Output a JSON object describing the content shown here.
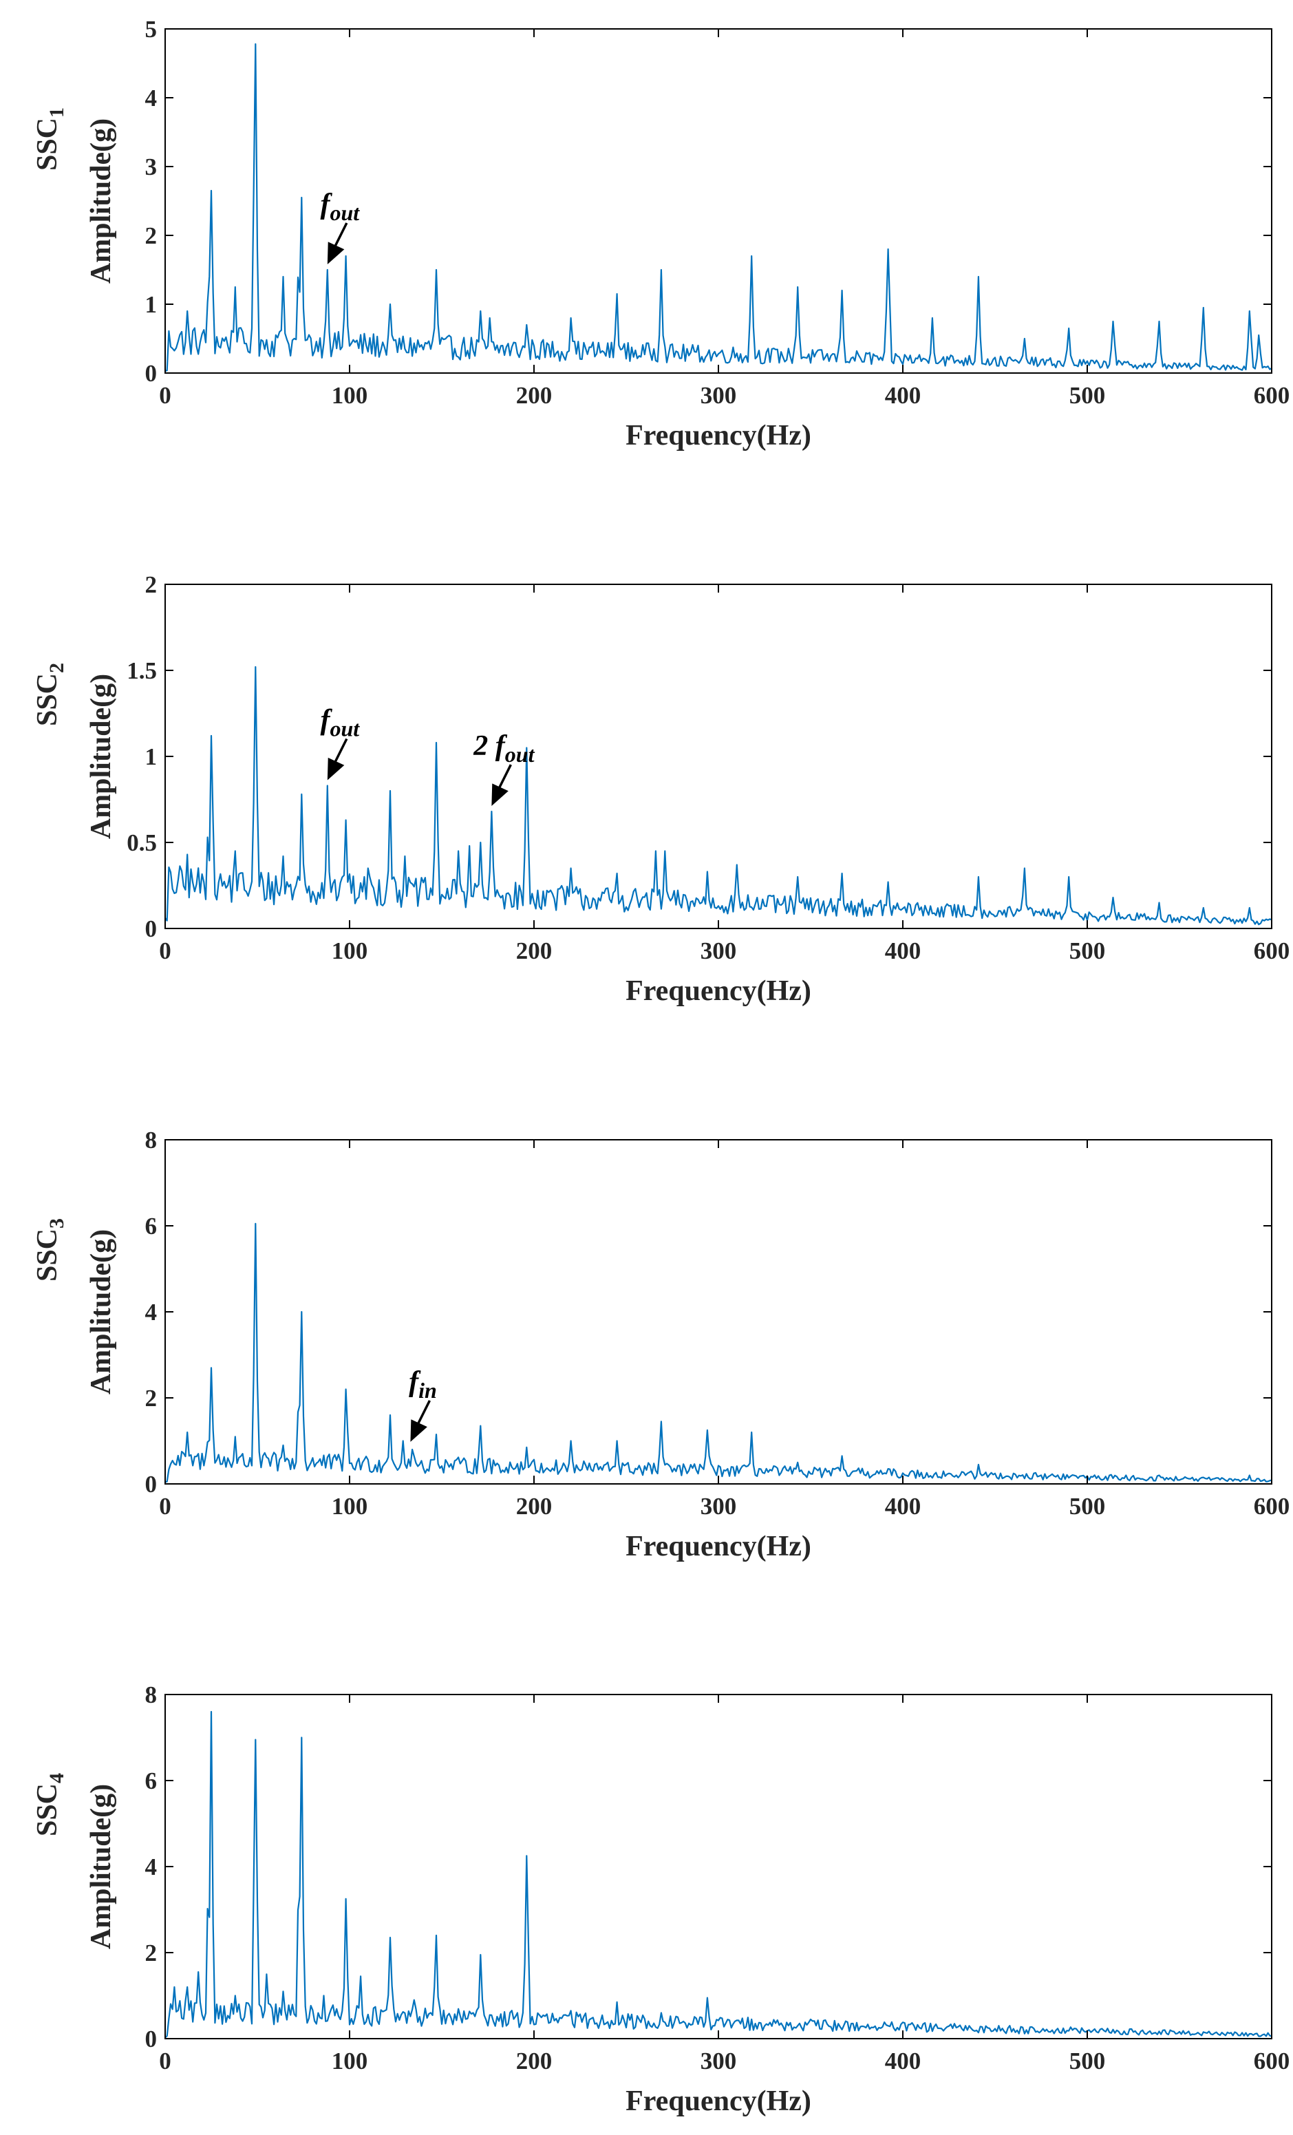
{
  "figure": {
    "line_color": "#0072BD"
  },
  "chart_data": [
    {
      "type": "line",
      "title": "",
      "xlabel": "Frequency(Hz)",
      "ylabel": "Amplitude(g)",
      "ylabel_prefix": {
        "main": "SSC",
        "sub": "1"
      },
      "xlim": [
        0,
        600
      ],
      "ylim": [
        0,
        5
      ],
      "xticks": [
        0,
        100,
        200,
        300,
        400,
        500,
        600
      ],
      "yticks": [
        0,
        1,
        2,
        3,
        4,
        5
      ],
      "grid": false,
      "peaks": [
        [
          12,
          0.9
        ],
        [
          24.5,
          2.65
        ],
        [
          38,
          1.25
        ],
        [
          49,
          4.78
        ],
        [
          64,
          1.4
        ],
        [
          73.5,
          2.55
        ],
        [
          88,
          1.5
        ],
        [
          98,
          1.7
        ],
        [
          122,
          1.0
        ],
        [
          147,
          1.5
        ],
        [
          171,
          0.9
        ],
        [
          176,
          0.8
        ],
        [
          196,
          0.7
        ],
        [
          220,
          0.8
        ],
        [
          245,
          1.15
        ],
        [
          269,
          1.5
        ],
        [
          318,
          1.7
        ],
        [
          343,
          1.25
        ],
        [
          367,
          1.2
        ],
        [
          392,
          1.8
        ],
        [
          416,
          0.8
        ],
        [
          441,
          1.4
        ],
        [
          466,
          0.5
        ],
        [
          490,
          0.65
        ],
        [
          514,
          0.75
        ],
        [
          539,
          0.75
        ],
        [
          563,
          0.95
        ],
        [
          588,
          0.9
        ],
        [
          593,
          0.55
        ]
      ],
      "baseline": 0.25,
      "noise": 0.45,
      "annotations": [
        {
          "main": "f",
          "sub": "out",
          "x": 88,
          "y": 1.5
        }
      ]
    },
    {
      "type": "line",
      "title": "",
      "xlabel": "Frequency(Hz)",
      "ylabel": "Amplitude(g)",
      "ylabel_prefix": {
        "main": "SSC",
        "sub": "2"
      },
      "xlim": [
        0,
        600
      ],
      "ylim": [
        0,
        2
      ],
      "xticks": [
        0,
        100,
        200,
        300,
        400,
        500,
        600
      ],
      "yticks": [
        0,
        0.5,
        1,
        1.5,
        2
      ],
      "grid": false,
      "peaks": [
        [
          12,
          0.43
        ],
        [
          24.5,
          1.12
        ],
        [
          38,
          0.45
        ],
        [
          49,
          1.52
        ],
        [
          64,
          0.42
        ],
        [
          73.5,
          0.78
        ],
        [
          88,
          0.83
        ],
        [
          98,
          0.63
        ],
        [
          110,
          0.35
        ],
        [
          122,
          0.8
        ],
        [
          130,
          0.42
        ],
        [
          147,
          1.08
        ],
        [
          159,
          0.45
        ],
        [
          165,
          0.48
        ],
        [
          171,
          0.5
        ],
        [
          177,
          0.68
        ],
        [
          196,
          1.05
        ],
        [
          220,
          0.35
        ],
        [
          245,
          0.32
        ],
        [
          266,
          0.45
        ],
        [
          271,
          0.45
        ],
        [
          294,
          0.33
        ],
        [
          310,
          0.37
        ],
        [
          343,
          0.3
        ],
        [
          367,
          0.32
        ],
        [
          392,
          0.27
        ],
        [
          441,
          0.3
        ],
        [
          466,
          0.35
        ],
        [
          490,
          0.3
        ],
        [
          514,
          0.18
        ],
        [
          539,
          0.15
        ],
        [
          563,
          0.12
        ],
        [
          588,
          0.12
        ]
      ],
      "baseline": 0.15,
      "noise": 0.22,
      "annotations": [
        {
          "main": "f",
          "sub": "out",
          "x": 88,
          "y": 0.83
        },
        {
          "main": "2 f",
          "sub": "out",
          "x": 177,
          "y": 0.68
        }
      ]
    },
    {
      "type": "line",
      "title": "",
      "xlabel": "Frequency(Hz)",
      "ylabel": "Amplitude(g)",
      "ylabel_prefix": {
        "main": "SSC",
        "sub": "3"
      },
      "xlim": [
        0,
        600
      ],
      "ylim": [
        0,
        8
      ],
      "xticks": [
        0,
        100,
        200,
        300,
        400,
        500,
        600
      ],
      "yticks": [
        0,
        2,
        4,
        6,
        8
      ],
      "grid": false,
      "peaks": [
        [
          12,
          1.2
        ],
        [
          24.5,
          2.7
        ],
        [
          38,
          1.1
        ],
        [
          49,
          6.05
        ],
        [
          64,
          0.9
        ],
        [
          73.5,
          4.0
        ],
        [
          98,
          2.2
        ],
        [
          122,
          1.6
        ],
        [
          129,
          1.0
        ],
        [
          134,
          0.8
        ],
        [
          147,
          1.15
        ],
        [
          171,
          1.35
        ],
        [
          196,
          0.85
        ],
        [
          220,
          1.0
        ],
        [
          245,
          1.0
        ],
        [
          269,
          1.45
        ],
        [
          294,
          1.25
        ],
        [
          318,
          1.2
        ],
        [
          343,
          0.5
        ],
        [
          367,
          0.65
        ],
        [
          392,
          0.35
        ],
        [
          441,
          0.45
        ],
        [
          539,
          0.2
        ],
        [
          588,
          0.2
        ]
      ],
      "baseline": 0.3,
      "noise": 0.5,
      "annotations": [
        {
          "main": "f",
          "sub": "in",
          "x": 133,
          "y": 0.85
        }
      ]
    },
    {
      "type": "line",
      "title": "",
      "xlabel": "Frequency(Hz)",
      "ylabel": "Amplitude(g)",
      "ylabel_prefix": {
        "main": "SSC",
        "sub": "4"
      },
      "xlim": [
        0,
        600
      ],
      "ylim": [
        0,
        8
      ],
      "xticks": [
        0,
        100,
        200,
        300,
        400,
        500,
        600
      ],
      "yticks": [
        0,
        2,
        4,
        6,
        8
      ],
      "grid": false,
      "peaks": [
        [
          5,
          1.2
        ],
        [
          12,
          1.2
        ],
        [
          18,
          1.55
        ],
        [
          24.5,
          7.6
        ],
        [
          38,
          1.0
        ],
        [
          49,
          6.95
        ],
        [
          55,
          1.5
        ],
        [
          64,
          1.1
        ],
        [
          73.5,
          7.0
        ],
        [
          86,
          1.0
        ],
        [
          98,
          3.25
        ],
        [
          106,
          1.45
        ],
        [
          122,
          2.35
        ],
        [
          135,
          0.9
        ],
        [
          147,
          2.4
        ],
        [
          171,
          1.95
        ],
        [
          196,
          4.25
        ],
        [
          220,
          0.65
        ],
        [
          245,
          0.85
        ],
        [
          269,
          0.6
        ],
        [
          294,
          0.95
        ],
        [
          318,
          0.45
        ],
        [
          343,
          0.3
        ],
        [
          392,
          0.3
        ]
      ],
      "baseline": 0.35,
      "noise": 0.55,
      "annotations": []
    }
  ]
}
